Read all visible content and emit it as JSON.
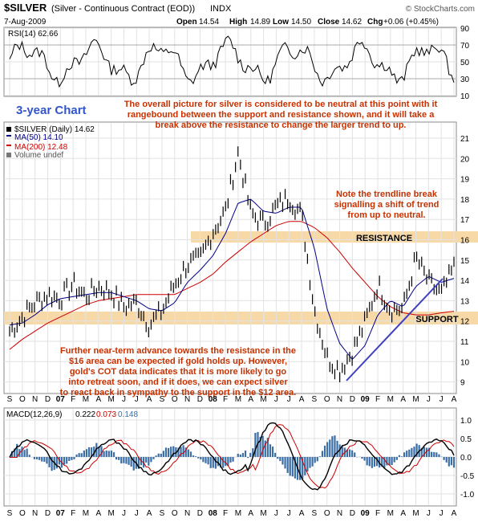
{
  "header": {
    "symbol": "$SILVER",
    "description": "(Silver - Continuous Contract (EOD))",
    "exchange": "INDX",
    "date": "7-Aug-2009",
    "watermark": "© StockCharts.com",
    "open_label": "Open",
    "open": "14.54",
    "high_label": "High",
    "high": "14.89",
    "low_label": "Low",
    "low": "14.50",
    "close_label": "Close",
    "close": "14.62",
    "chg_label": "Chg",
    "chg": "+0.06 (+0.45%)"
  },
  "rsi": {
    "label": "RSI(14) 62.66",
    "ticks": [
      "90",
      "70",
      "50",
      "30",
      "10"
    ]
  },
  "price_panel": {
    "legend_price": "$SILVER (Daily) 14.62",
    "legend_ma50": "MA(50) 14.10",
    "legend_ma200": "MA(200) 12.48",
    "legend_volume": "Volume undef",
    "ticks": [
      "21",
      "20",
      "19",
      "18",
      "17",
      "16",
      "15",
      "14",
      "13",
      "12",
      "11",
      "10",
      "9"
    ]
  },
  "annotations": {
    "chart_title": "3-year Chart",
    "overview": "The overall picture for silver is considered to be neutral at this point with it rangebound between the support and resistance shown, and it will take a break above the resistance to change the larger trend to up.",
    "overview_line1": "The overall picture for silver is considered to be neutral at this point with it",
    "overview_line2": "rangebound between the support and resistance shown, and it will take a",
    "overview_line3": "break above the resistance to change the larger trend to up.",
    "trendline_note_line1": "Note the trendline break",
    "trendline_note_line2": "signalling a shift of trend",
    "trendline_note_line3": "from up to neutral.",
    "resistance": "RESISTANCE",
    "support": "SUPPORT",
    "forecast_line1": "Further near-term advance towards the resistance in the",
    "forecast_line2": "$16 area can be expected if gold holds up. However,",
    "forecast_line3": "gold's COT data indicates that it is more likely to go",
    "forecast_line4": "into retreat soon, and if it does, we can expect silver",
    "forecast_line5": "to react back in sympathy to the support in the $12 area."
  },
  "macd": {
    "label": "MACD(12,26,9)",
    "v1": "0.222",
    "v2": "0.073",
    "v3": "0.148",
    "ticks": [
      "1.0",
      "0.5",
      "0.0",
      "-0.5",
      "-1.0"
    ]
  },
  "months": [
    "S",
    "O",
    "N",
    "D",
    "07",
    "F",
    "M",
    "A",
    "M",
    "J",
    "J",
    "A",
    "S",
    "O",
    "N",
    "D",
    "08",
    "F",
    "M",
    "A",
    "M",
    "J",
    "J",
    "A",
    "S",
    "O",
    "N",
    "D",
    "09",
    "F",
    "M",
    "A",
    "M",
    "J",
    "J",
    "A"
  ],
  "colors": {
    "price": "#000000",
    "ma50": "#00008b",
    "ma200": "#cc0000",
    "band": "#f7d9a8",
    "annotation": "#c83200",
    "title": "#3355cc",
    "trendline": "#4040c0",
    "histogram": "#3a6ea5"
  },
  "chart_data": {
    "type": "line",
    "title": "$SILVER (Silver - Continuous Contract (EOD)) INDX",
    "xlabel": "",
    "ylabel": "",
    "x": [
      "S",
      "O",
      "N",
      "D",
      "07",
      "F",
      "M",
      "A",
      "M",
      "J",
      "J",
      "A",
      "S",
      "O",
      "N",
      "D",
      "08",
      "F",
      "M",
      "A",
      "M",
      "J",
      "J",
      "A",
      "S",
      "O",
      "N",
      "D",
      "09",
      "F",
      "M",
      "A",
      "M",
      "J",
      "J",
      "A"
    ],
    "ylim": [
      8.5,
      21.5
    ],
    "series": [
      {
        "name": "$SILVER (Daily) 14.62",
        "values": [
          11.5,
          12.2,
          12.9,
          13.3,
          13.1,
          13.8,
          13.2,
          13.7,
          13.4,
          12.7,
          12.9,
          11.8,
          12.5,
          13.8,
          14.8,
          15.0,
          16.4,
          17.4,
          20.3,
          17.3,
          16.8,
          17.6,
          18.1,
          17.2,
          12.6,
          10.2,
          9.6,
          10.5,
          11.9,
          13.8,
          12.6,
          12.6,
          15.1,
          13.9,
          13.3,
          14.62
        ]
      },
      {
        "name": "MA(50) 14.10",
        "values": [
          11.8,
          11.9,
          12.3,
          12.8,
          13.1,
          13.2,
          13.3,
          13.4,
          13.4,
          13.2,
          13.0,
          12.6,
          12.5,
          12.9,
          13.9,
          14.5,
          15.2,
          16.3,
          17.8,
          18.0,
          17.4,
          17.3,
          17.6,
          17.6,
          15.6,
          12.6,
          10.9,
          10.1,
          10.8,
          12.3,
          13.0,
          12.7,
          13.7,
          14.2,
          13.9,
          14.1
        ]
      },
      {
        "name": "MA(200) 12.48",
        "values": [
          10.6,
          11.1,
          11.5,
          11.9,
          12.2,
          12.5,
          12.8,
          13.0,
          13.1,
          13.2,
          13.3,
          13.3,
          13.3,
          13.3,
          13.6,
          13.9,
          14.3,
          14.9,
          15.4,
          15.9,
          16.3,
          16.7,
          16.9,
          16.9,
          16.6,
          16.1,
          15.4,
          14.6,
          13.9,
          13.2,
          12.7,
          12.4,
          12.3,
          12.3,
          12.4,
          12.48
        ]
      }
    ],
    "resistance_band": [
      16.0,
      16.4
    ],
    "support_band": [
      11.9,
      12.4
    ],
    "rsi": {
      "name": "RSI(14) 62.66",
      "ylim": [
        10,
        90
      ]
    },
    "macd": {
      "name": "MACD(12,26,9)",
      "values": [
        "0.222",
        "0.073",
        "0.148"
      ],
      "ylim": [
        -1.2,
        1.2
      ]
    }
  }
}
